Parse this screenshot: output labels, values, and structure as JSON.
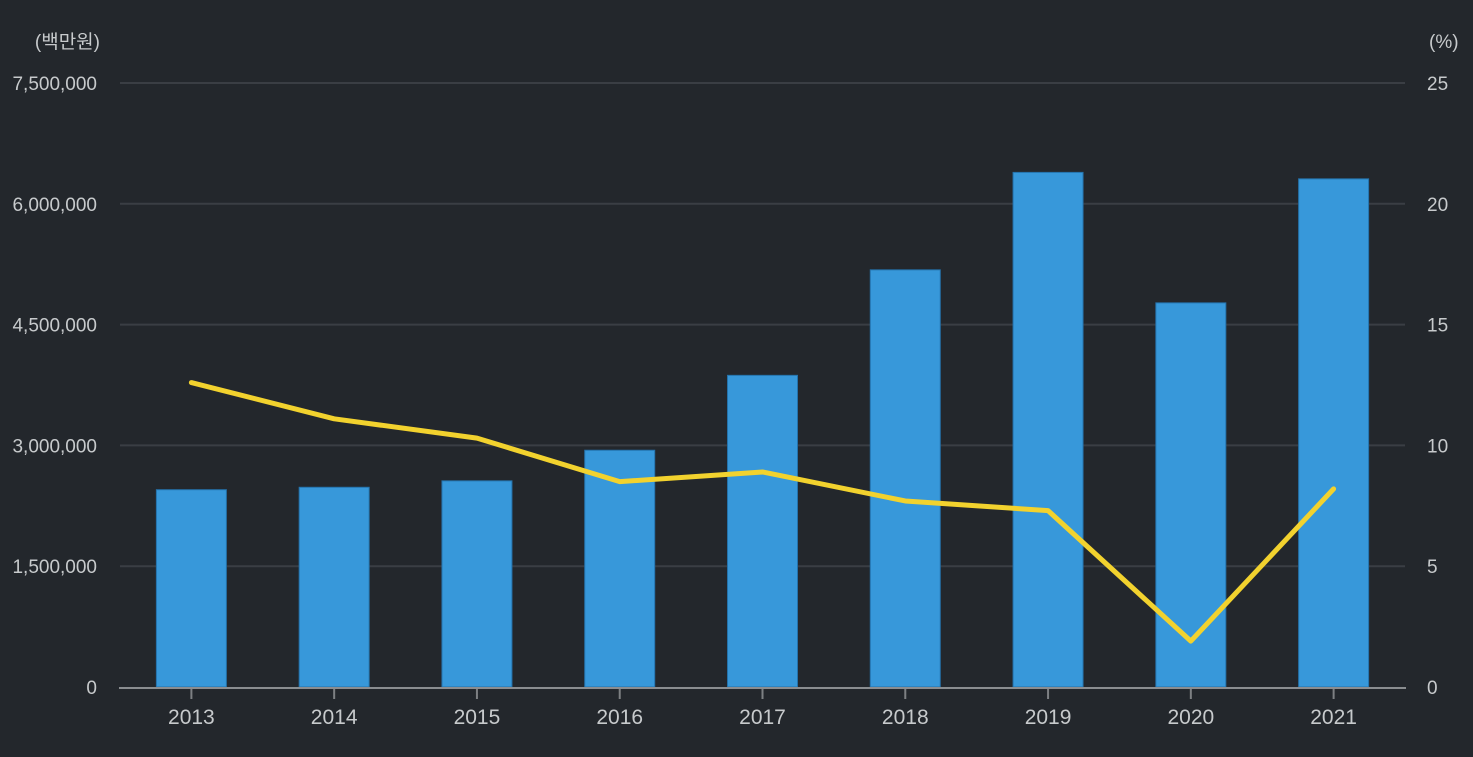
{
  "chart": {
    "left_axis_title": "(백만원)",
    "right_axis_title": "(%)"
  },
  "colors": {
    "background": "#23272c",
    "gridline": "#3a3e44",
    "axis_line": "#8a8d90",
    "tick_text": "#c7cacc",
    "axis_tick_mark": "#7d8083",
    "bar_fill": "#3798da",
    "bar_stroke": "#2472ab",
    "line_stroke": "#f2d22e"
  },
  "chart_data": {
    "type": "bar",
    "title": "",
    "categories": [
      "2013",
      "2014",
      "2015",
      "2016",
      "2017",
      "2018",
      "2019",
      "2020",
      "2021"
    ],
    "series": [
      {
        "id": "amount-bars",
        "type": "bar",
        "axis": "left",
        "values": [
          2450000,
          2480000,
          2560000,
          2940000,
          3870000,
          5180000,
          6390000,
          4770000,
          6310000
        ]
      },
      {
        "id": "percent-line",
        "type": "line",
        "axis": "right",
        "values": [
          12.6,
          11.1,
          10.3,
          8.5,
          8.9,
          7.7,
          7.3,
          1.9,
          8.2
        ]
      }
    ],
    "left_axis": {
      "title": "(백만원)",
      "range": [
        0,
        7500000
      ],
      "tick_labels": [
        "0",
        "1,500,000",
        "3,000,000",
        "4,500,000",
        "6,000,000",
        "7,500,000"
      ],
      "tick_values": [
        0,
        1500000,
        3000000,
        4500000,
        6000000,
        7500000
      ]
    },
    "right_axis": {
      "title": "(%)",
      "range": [
        0,
        25
      ],
      "tick_labels": [
        "0",
        "5",
        "10",
        "15",
        "20",
        "25"
      ],
      "tick_values": [
        0,
        5,
        10,
        15,
        20,
        25
      ]
    },
    "xlabel": "",
    "ylabel": "(백만원)",
    "grid": true,
    "legend": "none"
  }
}
